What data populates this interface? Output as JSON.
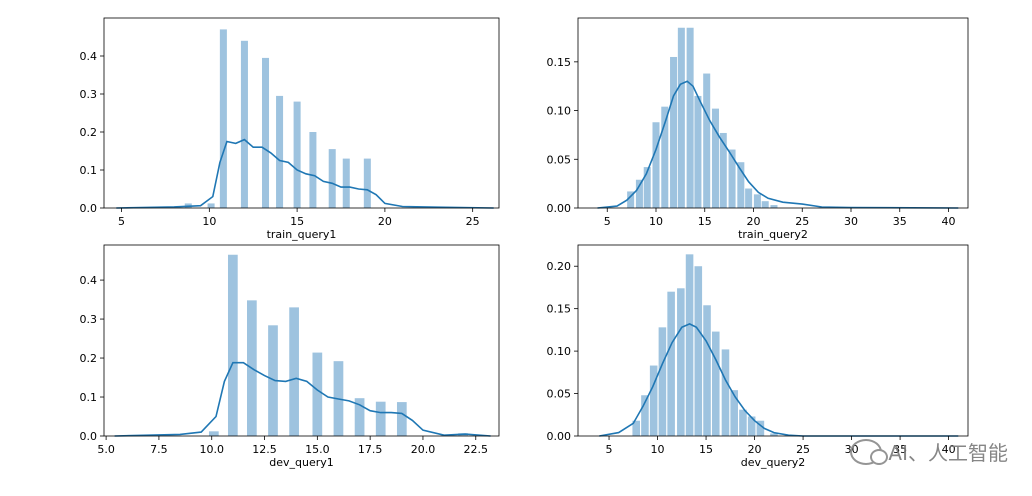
{
  "chart_data": [
    {
      "type": "histogram",
      "xlabel": "train_query1",
      "xlim": [
        4,
        26.5
      ],
      "ylim": [
        0,
        0.5
      ],
      "xticks": [
        5,
        10,
        15,
        20,
        25
      ],
      "yticks": [
        0.0,
        0.1,
        0.2,
        0.3,
        0.4
      ],
      "tick_decimals_y": 1,
      "bar_color": "#9ec3df",
      "line_color": "#1f77b4",
      "bar_width": 0.4,
      "bars": [
        {
          "x": 8.8,
          "h": 0.012
        },
        {
          "x": 10.1,
          "h": 0.012
        },
        {
          "x": 10.8,
          "h": 0.47
        },
        {
          "x": 12.0,
          "h": 0.44
        },
        {
          "x": 13.2,
          "h": 0.395
        },
        {
          "x": 14.0,
          "h": 0.295
        },
        {
          "x": 15.0,
          "h": 0.28
        },
        {
          "x": 15.9,
          "h": 0.2
        },
        {
          "x": 17.0,
          "h": 0.155
        },
        {
          "x": 17.8,
          "h": 0.13
        },
        {
          "x": 19.0,
          "h": 0.13
        }
      ],
      "kde": [
        [
          4.7,
          0
        ],
        [
          8,
          0.003
        ],
        [
          9.5,
          0.006
        ],
        [
          10.2,
          0.03
        ],
        [
          10.6,
          0.12
        ],
        [
          11.0,
          0.175
        ],
        [
          11.5,
          0.17
        ],
        [
          12.0,
          0.18
        ],
        [
          12.5,
          0.16
        ],
        [
          13.0,
          0.16
        ],
        [
          13.5,
          0.145
        ],
        [
          14.0,
          0.125
        ],
        [
          14.5,
          0.12
        ],
        [
          15.0,
          0.1
        ],
        [
          15.5,
          0.09
        ],
        [
          16.0,
          0.085
        ],
        [
          16.5,
          0.07
        ],
        [
          17.0,
          0.065
        ],
        [
          17.5,
          0.055
        ],
        [
          18.0,
          0.055
        ],
        [
          18.5,
          0.05
        ],
        [
          19.0,
          0.048
        ],
        [
          19.5,
          0.035
        ],
        [
          20.0,
          0.012
        ],
        [
          21.0,
          0.004
        ],
        [
          23.0,
          0.002
        ],
        [
          26.2,
          0
        ]
      ]
    },
    {
      "type": "histogram",
      "xlabel": "train_query2",
      "xlim": [
        2,
        42
      ],
      "ylim": [
        0,
        0.195
      ],
      "xticks": [
        5,
        10,
        15,
        20,
        25,
        30,
        35,
        40
      ],
      "yticks": [
        0.0,
        0.05,
        0.1,
        0.15
      ],
      "tick_decimals_y": 2,
      "bar_color": "#9ec3df",
      "line_color": "#1f77b4",
      "bar_width": 0.72,
      "bars": [
        {
          "x": 7.4,
          "h": 0.017
        },
        {
          "x": 8.3,
          "h": 0.029
        },
        {
          "x": 9.1,
          "h": 0.042
        },
        {
          "x": 10.0,
          "h": 0.088
        },
        {
          "x": 10.9,
          "h": 0.104
        },
        {
          "x": 11.8,
          "h": 0.155
        },
        {
          "x": 12.6,
          "h": 0.185
        },
        {
          "x": 13.5,
          "h": 0.185
        },
        {
          "x": 14.3,
          "h": 0.115
        },
        {
          "x": 15.2,
          "h": 0.138
        },
        {
          "x": 16.1,
          "h": 0.102
        },
        {
          "x": 16.9,
          "h": 0.077
        },
        {
          "x": 17.8,
          "h": 0.06
        },
        {
          "x": 18.7,
          "h": 0.047
        },
        {
          "x": 19.5,
          "h": 0.02
        },
        {
          "x": 20.4,
          "h": 0.014
        },
        {
          "x": 21.2,
          "h": 0.007
        },
        {
          "x": 22.1,
          "h": 0.003
        }
      ],
      "kde": [
        [
          4,
          0
        ],
        [
          6,
          0.002
        ],
        [
          7,
          0.008
        ],
        [
          8,
          0.018
        ],
        [
          9,
          0.035
        ],
        [
          10,
          0.06
        ],
        [
          11,
          0.09
        ],
        [
          11.8,
          0.115
        ],
        [
          12.5,
          0.127
        ],
        [
          13.2,
          0.13
        ],
        [
          13.8,
          0.125
        ],
        [
          14.5,
          0.11
        ],
        [
          15.5,
          0.09
        ],
        [
          16.5,
          0.073
        ],
        [
          17.5,
          0.058
        ],
        [
          18.5,
          0.042
        ],
        [
          19.5,
          0.027
        ],
        [
          20.5,
          0.016
        ],
        [
          21.5,
          0.01
        ],
        [
          23,
          0.006
        ],
        [
          25,
          0.004
        ],
        [
          27,
          0.001
        ],
        [
          30,
          0.0005
        ],
        [
          41,
          0
        ]
      ]
    },
    {
      "type": "histogram",
      "xlabel": "dev_query1",
      "xlim": [
        4.9,
        23.6
      ],
      "ylim": [
        0,
        0.49
      ],
      "xticks": [
        5.0,
        7.5,
        10.0,
        12.5,
        15.0,
        17.5,
        20.0,
        22.5
      ],
      "yticks": [
        0.0,
        0.1,
        0.2,
        0.3,
        0.4
      ],
      "tick_decimals_x": 1,
      "tick_decimals_y": 1,
      "bar_color": "#9ec3df",
      "line_color": "#1f77b4",
      "bar_width": 0.46,
      "bars": [
        {
          "x": 10.1,
          "h": 0.012
        },
        {
          "x": 11.0,
          "h": 0.465
        },
        {
          "x": 11.9,
          "h": 0.348
        },
        {
          "x": 12.9,
          "h": 0.284
        },
        {
          "x": 13.9,
          "h": 0.33
        },
        {
          "x": 15.0,
          "h": 0.214
        },
        {
          "x": 16.0,
          "h": 0.192
        },
        {
          "x": 17.0,
          "h": 0.097
        },
        {
          "x": 18.0,
          "h": 0.088
        },
        {
          "x": 19.0,
          "h": 0.087
        },
        {
          "x": 21.9,
          "h": 0.007
        }
      ],
      "kde": [
        [
          5.4,
          0
        ],
        [
          7,
          0.002
        ],
        [
          8.5,
          0.004
        ],
        [
          9.5,
          0.01
        ],
        [
          10.2,
          0.05
        ],
        [
          10.6,
          0.14
        ],
        [
          11.0,
          0.188
        ],
        [
          11.5,
          0.188
        ],
        [
          12.0,
          0.17
        ],
        [
          12.5,
          0.155
        ],
        [
          13.0,
          0.142
        ],
        [
          13.5,
          0.14
        ],
        [
          14.0,
          0.148
        ],
        [
          14.5,
          0.14
        ],
        [
          15.0,
          0.118
        ],
        [
          15.5,
          0.1
        ],
        [
          16.0,
          0.095
        ],
        [
          16.5,
          0.09
        ],
        [
          17.0,
          0.08
        ],
        [
          17.5,
          0.065
        ],
        [
          18.0,
          0.06
        ],
        [
          18.5,
          0.06
        ],
        [
          19.0,
          0.058
        ],
        [
          19.5,
          0.04
        ],
        [
          20.0,
          0.015
        ],
        [
          21,
          0.002
        ],
        [
          22,
          0.005
        ],
        [
          23.2,
          0
        ]
      ]
    },
    {
      "type": "histogram",
      "xlabel": "dev_query2",
      "xlim": [
        1.8,
        42
      ],
      "ylim": [
        0,
        0.225
      ],
      "xticks": [
        5,
        10,
        15,
        20,
        25,
        30,
        35,
        40
      ],
      "yticks": [
        0.0,
        0.05,
        0.1,
        0.15,
        0.2
      ],
      "tick_decimals_y": 2,
      "bar_color": "#9ec3df",
      "line_color": "#1f77b4",
      "bar_width": 0.78,
      "bars": [
        {
          "x": 7.8,
          "h": 0.018
        },
        {
          "x": 8.7,
          "h": 0.048
        },
        {
          "x": 9.6,
          "h": 0.083
        },
        {
          "x": 10.5,
          "h": 0.128
        },
        {
          "x": 11.4,
          "h": 0.17
        },
        {
          "x": 12.4,
          "h": 0.174
        },
        {
          "x": 13.3,
          "h": 0.214
        },
        {
          "x": 14.2,
          "h": 0.2
        },
        {
          "x": 15.1,
          "h": 0.154
        },
        {
          "x": 16.0,
          "h": 0.123
        },
        {
          "x": 17.0,
          "h": 0.102
        },
        {
          "x": 17.9,
          "h": 0.054
        },
        {
          "x": 18.8,
          "h": 0.031
        },
        {
          "x": 19.7,
          "h": 0.023
        },
        {
          "x": 20.6,
          "h": 0.018
        },
        {
          "x": 22.0,
          "h": 0.003
        }
      ],
      "kde": [
        [
          4,
          0
        ],
        [
          6,
          0.004
        ],
        [
          7.5,
          0.015
        ],
        [
          8.5,
          0.035
        ],
        [
          9.5,
          0.058
        ],
        [
          10.5,
          0.085
        ],
        [
          11.5,
          0.11
        ],
        [
          12.5,
          0.128
        ],
        [
          13.3,
          0.132
        ],
        [
          14.0,
          0.128
        ],
        [
          15.0,
          0.112
        ],
        [
          16.0,
          0.09
        ],
        [
          17.0,
          0.066
        ],
        [
          18.0,
          0.046
        ],
        [
          19.0,
          0.03
        ],
        [
          20.0,
          0.018
        ],
        [
          21.0,
          0.009
        ],
        [
          22.0,
          0.004
        ],
        [
          23.5,
          0.001
        ],
        [
          25,
          0
        ],
        [
          41,
          0
        ]
      ]
    }
  ],
  "watermark": {
    "text": "AI、人工智能",
    "icon": "wechat-icon"
  }
}
